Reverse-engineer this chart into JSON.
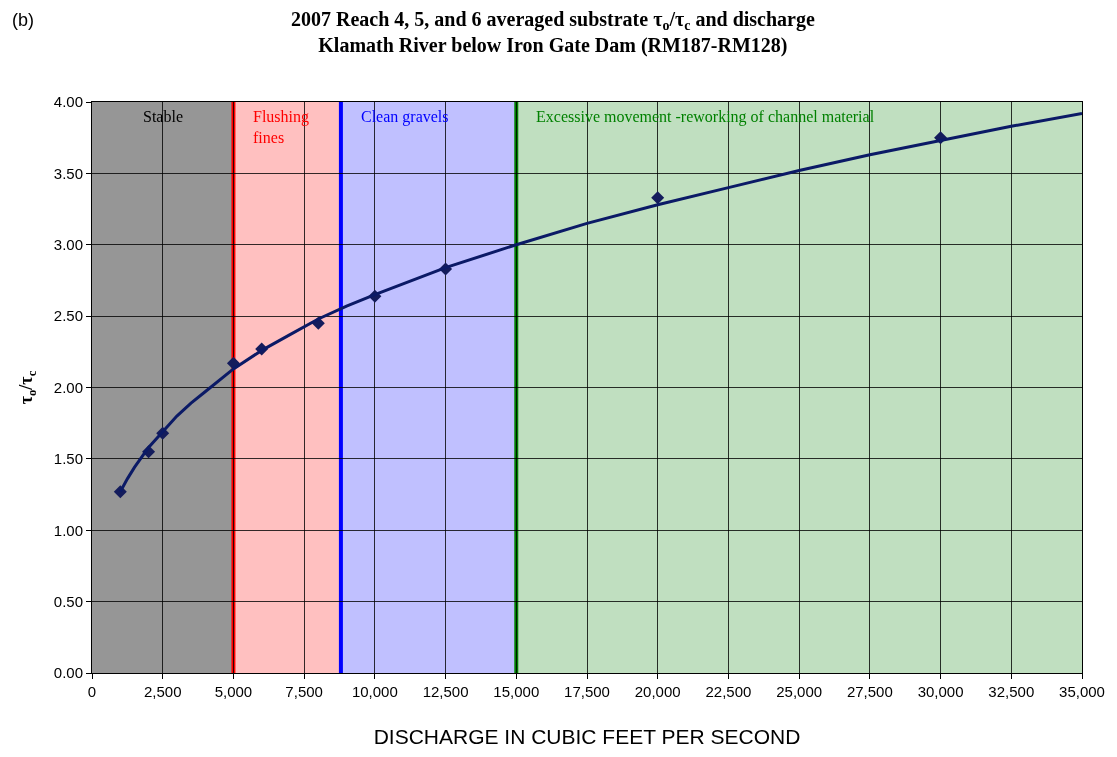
{
  "chart_data": {
    "type": "scatter",
    "title": "2007 Reach 4, 5, and 6 averaged substrate τ$_{o}$/τ$_{c}$ and discharge\nKlamath River below Iron Gate Dam (RM187-RM128)",
    "xlabel": "DISCHARGE IN CUBIC FEET PER SECOND",
    "ylabel": "τ$_{o}$/τ$_{c}$",
    "annotations": [
      "(b)"
    ],
    "marker": "diamond",
    "grid": true,
    "series": [
      {
        "color": "#141c5c",
        "x": [
          1000,
          2000,
          2500,
          5000,
          6000,
          8000,
          10000,
          12500,
          20000,
          30000
        ],
        "values": [
          1.27,
          1.55,
          1.68,
          2.17,
          2.27,
          2.45,
          2.64,
          2.83,
          3.33,
          3.75
        ]
      },
      {
        "type": "line",
        "marker": "none",
        "color": "#0b1a66",
        "x": [
          1000,
          1250,
          1500,
          1750,
          2000,
          2500,
          3000,
          3500,
          4000,
          5000,
          6000,
          7000,
          8000,
          9000,
          10000,
          12500,
          15000,
          17500,
          20000,
          22500,
          25000,
          27500,
          30000,
          32500,
          35000
        ],
        "values": [
          1.27,
          1.36,
          1.44,
          1.51,
          1.58,
          1.69,
          1.8,
          1.89,
          1.97,
          2.13,
          2.26,
          2.37,
          2.48,
          2.57,
          2.65,
          2.84,
          3.0,
          3.15,
          3.28,
          3.4,
          3.52,
          3.63,
          3.73,
          3.83,
          3.92
        ]
      }
    ],
    "bands": [
      {
        "axis": "x",
        "from": 0,
        "to": 5000,
        "label": "Stable",
        "color": "#969696"
      },
      {
        "axis": "x",
        "from": 5000,
        "to": 8800,
        "color": "#ffc0c0"
      },
      {
        "axis": "x",
        "from": 8800,
        "to": 15000,
        "color": "#c0c0ff"
      },
      {
        "axis": "x",
        "from": 15000,
        "to": 35000,
        "color": "#c0dfc0"
      }
    ],
    "ref_lines": [
      {
        "axis": "x",
        "value": 5000,
        "label": "Flushing fines",
        "color": "#ff0000"
      },
      {
        "axis": "x",
        "value": 8800,
        "label": "Clean gravels",
        "color": "#0000ff"
      },
      {
        "axis": "x",
        "value": 15000,
        "label": "Excessive movement -reworking of channel material",
        "color": "#008000"
      }
    ],
    "xlim": [
      0,
      35000
    ],
    "xticks": [
      0,
      {
        "value": 2500,
        "label": "2,500"
      },
      {
        "value": 5000,
        "label": "5,000"
      },
      {
        "value": 7500,
        "label": "7,500"
      },
      {
        "value": 10000,
        "label": "10,000"
      },
      {
        "value": 12500,
        "label": "12,500"
      },
      {
        "value": 15000,
        "label": "15,000"
      },
      {
        "value": 17500,
        "label": "17,500"
      },
      {
        "value": 20000,
        "label": "20,000"
      },
      {
        "value": 22500,
        "label": "22,500"
      },
      {
        "value": 25000,
        "label": "25,000"
      },
      {
        "value": 27500,
        "label": "27,500"
      },
      {
        "value": 30000,
        "label": "30,000"
      },
      {
        "value": 32500,
        "label": "32,500"
      },
      {
        "value": 35000,
        "label": "35,000"
      }
    ],
    "ylim": [
      0,
      4
    ],
    "yticks": [
      {
        "value": 0,
        "label": "0.00"
      },
      {
        "value": 0.5,
        "label": "0.50"
      },
      {
        "value": 1,
        "label": "1.00"
      },
      {
        "value": 1.5,
        "label": "1.50"
      },
      {
        "value": 2,
        "label": "2.00"
      },
      {
        "value": 2.5,
        "label": "2.50"
      },
      {
        "value": 3,
        "label": "3.00"
      },
      {
        "value": 3.5,
        "label": "3.50"
      },
      {
        "value": 4,
        "label": "4.00"
      }
    ]
  }
}
